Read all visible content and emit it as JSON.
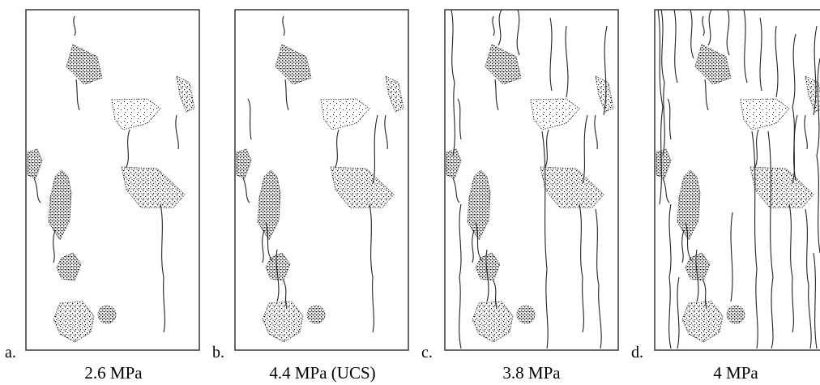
{
  "panels": [
    {
      "letter": "a.",
      "caption": "2.6 MPa"
    },
    {
      "letter": "b.",
      "caption": "4.4 MPa (UCS)"
    },
    {
      "letter": "c.",
      "caption": "3.8 MPa"
    },
    {
      "letter": "d.",
      "caption": "4 MPa"
    }
  ]
}
